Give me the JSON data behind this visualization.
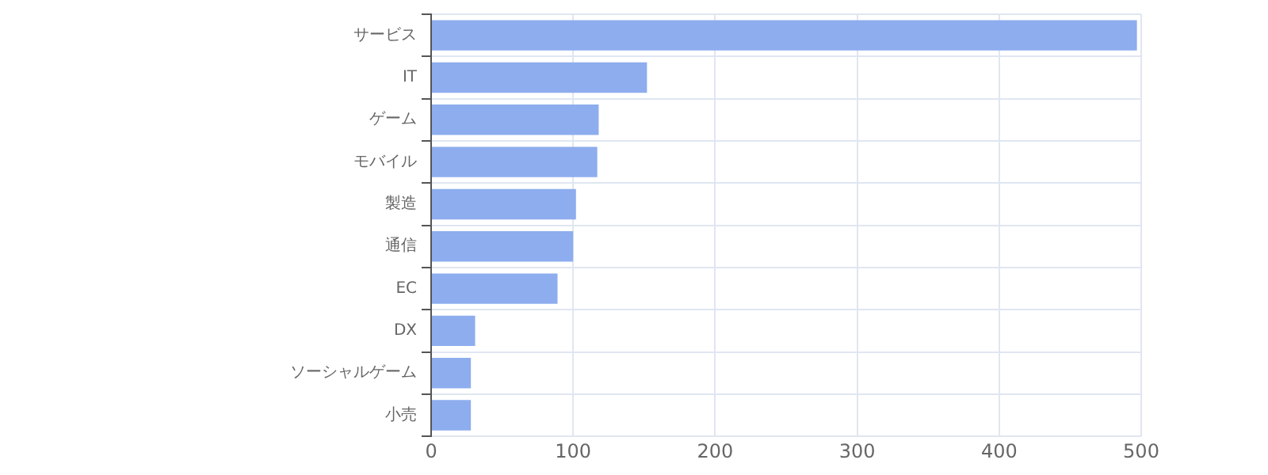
{
  "chart_data": {
    "type": "bar",
    "orientation": "horizontal",
    "categories": [
      "サービス",
      "IT",
      "ゲーム",
      "モバイル",
      "製造",
      "通信",
      "EC",
      "DX",
      "ソーシャルゲーム",
      "小売"
    ],
    "values": [
      497,
      152,
      118,
      117,
      102,
      100,
      89,
      31,
      28,
      28
    ],
    "color": "#8eadee",
    "xlim": [
      0,
      500
    ],
    "xticks": [
      0,
      100,
      200,
      300,
      400,
      500
    ],
    "grid": true,
    "legend": false
  }
}
